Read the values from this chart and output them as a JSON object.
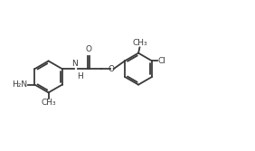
{
  "background_color": "#ffffff",
  "line_color": "#3a3a3a",
  "line_width": 1.3,
  "font_size": 6.5,
  "figure_width": 2.82,
  "figure_height": 1.67,
  "dpi": 100,
  "xlim": [
    0,
    10
  ],
  "ylim": [
    0,
    5.9
  ]
}
